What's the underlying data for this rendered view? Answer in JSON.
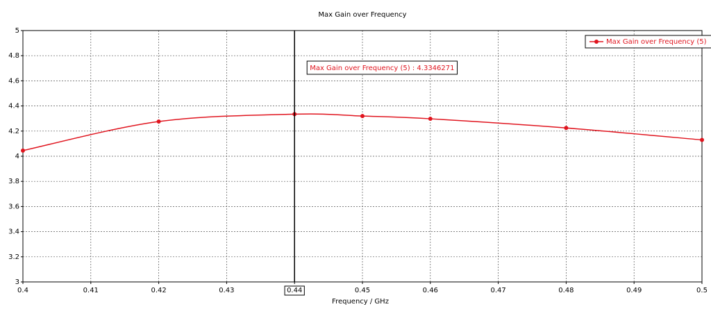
{
  "chart_data": {
    "type": "line",
    "title": "Max Gain over Frequency",
    "xlabel": "Frequency / GHz",
    "x": [
      0.4,
      0.42,
      0.44,
      0.45,
      0.46,
      0.48,
      0.5
    ],
    "series": [
      {
        "name": "Max Gain over Frequency (5)",
        "color": "#e0141e",
        "values": [
          4.045,
          4.276,
          4.3346271,
          4.32,
          4.298,
          4.225,
          4.13
        ]
      }
    ],
    "xlim": [
      0.4,
      0.5
    ],
    "xticks": [
      0.4,
      0.41,
      0.42,
      0.43,
      0.44,
      0.45,
      0.46,
      0.47,
      0.48,
      0.49,
      0.5
    ],
    "ylim": [
      3,
      5
    ],
    "yticks": [
      3,
      3.2,
      3.4,
      3.6,
      3.8,
      4,
      4.2,
      4.4,
      4.6,
      4.8,
      5
    ],
    "grid": true,
    "legend": "top-right",
    "marker": {
      "x": 0.44,
      "label": "Max Gain over Frequency (5) : 4.3346271"
    }
  }
}
